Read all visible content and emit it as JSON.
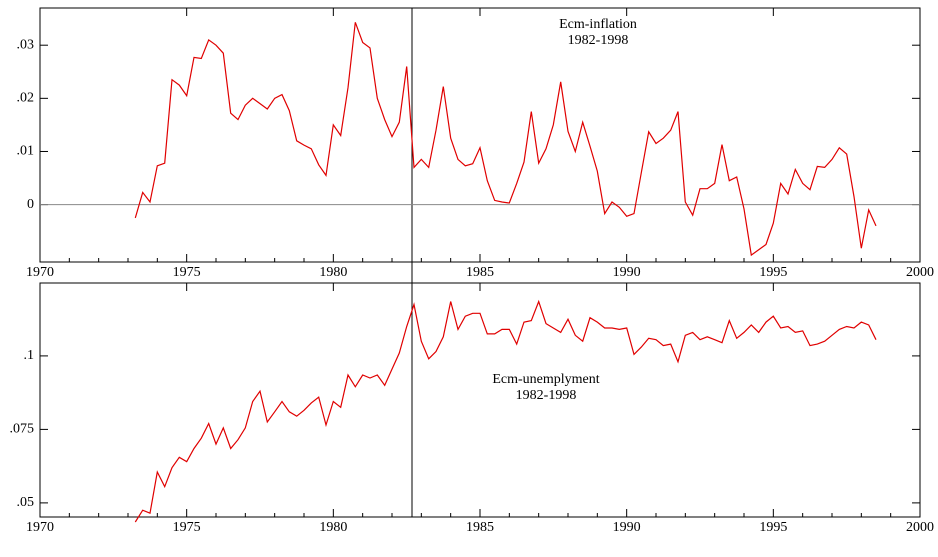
{
  "chart_data": [
    {
      "type": "line",
      "annotation": [
        "Ecm-inflation",
        "1982-1998"
      ],
      "color": "#e00000",
      "x": [
        1973.25,
        1973.5,
        1973.75,
        1974,
        1974.25,
        1974.5,
        1974.75,
        1975,
        1975.25,
        1975.5,
        1975.75,
        1976,
        1976.25,
        1976.5,
        1976.75,
        1977,
        1977.25,
        1977.5,
        1977.75,
        1978,
        1978.25,
        1978.5,
        1978.75,
        1979,
        1979.25,
        1979.5,
        1979.75,
        1980,
        1980.25,
        1980.5,
        1980.75,
        1981,
        1981.25,
        1981.5,
        1981.75,
        1982,
        1982.25,
        1982.5,
        1982.75,
        1983,
        1983.25,
        1983.5,
        1983.75,
        1984,
        1984.25,
        1984.5,
        1984.75,
        1985,
        1985.25,
        1985.5,
        1985.75,
        1986,
        1986.25,
        1986.5,
        1986.75,
        1987,
        1987.25,
        1987.5,
        1987.75,
        1988,
        1988.25,
        1988.5,
        1988.75,
        1989,
        1989.25,
        1989.5,
        1989.75,
        1990,
        1990.25,
        1990.5,
        1990.75,
        1991,
        1991.25,
        1991.5,
        1991.75,
        1992,
        1992.25,
        1992.5,
        1992.75,
        1993,
        1993.25,
        1993.5,
        1993.75,
        1994,
        1994.25,
        1994.5,
        1994.75,
        1995,
        1995.25,
        1995.5,
        1995.75,
        1996,
        1996.25,
        1996.5,
        1996.75,
        1997,
        1997.25,
        1997.5,
        1997.75,
        1998,
        1998.25,
        1998.5
      ],
      "values": [
        -0.0025,
        0.0023,
        0.0005,
        0.0073,
        0.0078,
        0.0235,
        0.0225,
        0.0205,
        0.0277,
        0.0275,
        0.031,
        0.03,
        0.0285,
        0.0172,
        0.016,
        0.0187,
        0.02,
        0.019,
        0.018,
        0.02,
        0.0207,
        0.0177,
        0.012,
        0.0112,
        0.0105,
        0.0075,
        0.0055,
        0.015,
        0.013,
        0.022,
        0.0343,
        0.0305,
        0.0295,
        0.02,
        0.016,
        0.0128,
        0.0155,
        0.026,
        0.007,
        0.0085,
        0.007,
        0.014,
        0.0222,
        0.0125,
        0.0085,
        0.0073,
        0.0077,
        0.0107,
        0.0045,
        0.0008,
        0.0005,
        0.0003,
        0.004,
        0.008,
        0.0175,
        0.0078,
        0.0105,
        0.015,
        0.0231,
        0.0138,
        0.01,
        0.0155,
        0.011,
        0.0063,
        -0.0017,
        0.0005,
        -0.0005,
        -0.0022,
        -0.0017,
        0.006,
        0.0137,
        0.0115,
        0.0125,
        0.014,
        0.0175,
        0.0005,
        -0.002,
        0.003,
        0.003,
        0.004,
        0.0113,
        0.0045,
        0.0052,
        -0.0008,
        -0.0095,
        -0.0085,
        -0.0075,
        -0.0035,
        0.004,
        0.002,
        0.0066,
        0.004,
        0.0028,
        0.0072,
        0.007,
        0.0085,
        0.0107,
        0.0095,
        0.0015,
        -0.0082,
        -0.001,
        -0.004
      ],
      "xlim": [
        1970,
        2000
      ],
      "xticks": [
        1970,
        1975,
        1980,
        1985,
        1990,
        1995,
        2000
      ],
      "ylim": [
        -0.0108,
        0.037
      ],
      "yticks": [
        0,
        {
          "value": 0.01,
          "label": ".01"
        },
        {
          "value": 0.02,
          "label": ".02"
        },
        {
          "value": 0.03,
          "label": ".03"
        }
      ],
      "zero_line": true
    },
    {
      "type": "line",
      "annotation": [
        "Ecm-unemplyment",
        "1982-1998"
      ],
      "color": "#e00000",
      "x": [
        1973.25,
        1973.5,
        1973.75,
        1974,
        1974.25,
        1974.5,
        1974.75,
        1975,
        1975.25,
        1975.5,
        1975.75,
        1976,
        1976.25,
        1976.5,
        1976.75,
        1977,
        1977.25,
        1977.5,
        1977.75,
        1978,
        1978.25,
        1978.5,
        1978.75,
        1979,
        1979.25,
        1979.5,
        1979.75,
        1980,
        1980.25,
        1980.5,
        1980.75,
        1981,
        1981.25,
        1981.5,
        1981.75,
        1982,
        1982.25,
        1982.5,
        1982.75,
        1983,
        1983.25,
        1983.5,
        1983.75,
        1984,
        1984.25,
        1984.5,
        1984.75,
        1985,
        1985.25,
        1985.5,
        1985.75,
        1986,
        1986.25,
        1986.5,
        1986.75,
        1987,
        1987.25,
        1987.5,
        1987.75,
        1988,
        1988.25,
        1988.5,
        1988.75,
        1989,
        1989.25,
        1989.5,
        1989.75,
        1990,
        1990.25,
        1990.5,
        1990.75,
        1991,
        1991.25,
        1991.5,
        1991.75,
        1992,
        1992.25,
        1992.5,
        1992.75,
        1993,
        1993.25,
        1993.5,
        1993.75,
        1994,
        1994.25,
        1994.5,
        1994.75,
        1995,
        1995.25,
        1995.5,
        1995.75,
        1996,
        1996.25,
        1996.5,
        1996.75,
        1997,
        1997.25,
        1997.5,
        1997.75,
        1998,
        1998.25,
        1998.5
      ],
      "values": [
        0.0435,
        0.0475,
        0.0465,
        0.0605,
        0.0555,
        0.062,
        0.0655,
        0.064,
        0.0685,
        0.072,
        0.077,
        0.07,
        0.0755,
        0.0685,
        0.0715,
        0.0755,
        0.0845,
        0.088,
        0.0775,
        0.081,
        0.0845,
        0.081,
        0.0795,
        0.0815,
        0.084,
        0.086,
        0.0765,
        0.0845,
        0.0825,
        0.0935,
        0.0895,
        0.0935,
        0.0925,
        0.0935,
        0.09,
        0.0955,
        0.101,
        0.11,
        0.1175,
        0.105,
        0.099,
        0.1015,
        0.1065,
        0.1185,
        0.109,
        0.1135,
        0.1145,
        0.1145,
        0.1075,
        0.1075,
        0.109,
        0.109,
        0.104,
        0.1115,
        0.112,
        0.1185,
        0.111,
        0.1095,
        0.108,
        0.1125,
        0.107,
        0.105,
        0.113,
        0.1115,
        0.1095,
        0.1095,
        0.109,
        0.1095,
        0.1005,
        0.103,
        0.106,
        0.1055,
        0.1035,
        0.104,
        0.098,
        0.107,
        0.108,
        0.1055,
        0.1065,
        0.1055,
        0.1045,
        0.112,
        0.106,
        0.108,
        0.1105,
        0.108,
        0.1115,
        0.1135,
        0.1095,
        0.11,
        0.108,
        0.1085,
        0.1035,
        0.104,
        0.105,
        0.107,
        0.109,
        0.11,
        0.1095,
        0.1115,
        0.1105,
        0.1055
      ],
      "xlim": [
        1970,
        2000
      ],
      "xticks": [
        1970,
        1975,
        1980,
        1985,
        1990,
        1995,
        2000
      ],
      "ylim": [
        0.0452,
        0.1248
      ],
      "yticks": [
        {
          "value": 0.05,
          "label": ".05"
        },
        {
          "value": 0.075,
          "label": ".075"
        },
        {
          "value": 0.1,
          "label": ".1"
        }
      ],
      "zero_line": false
    }
  ]
}
